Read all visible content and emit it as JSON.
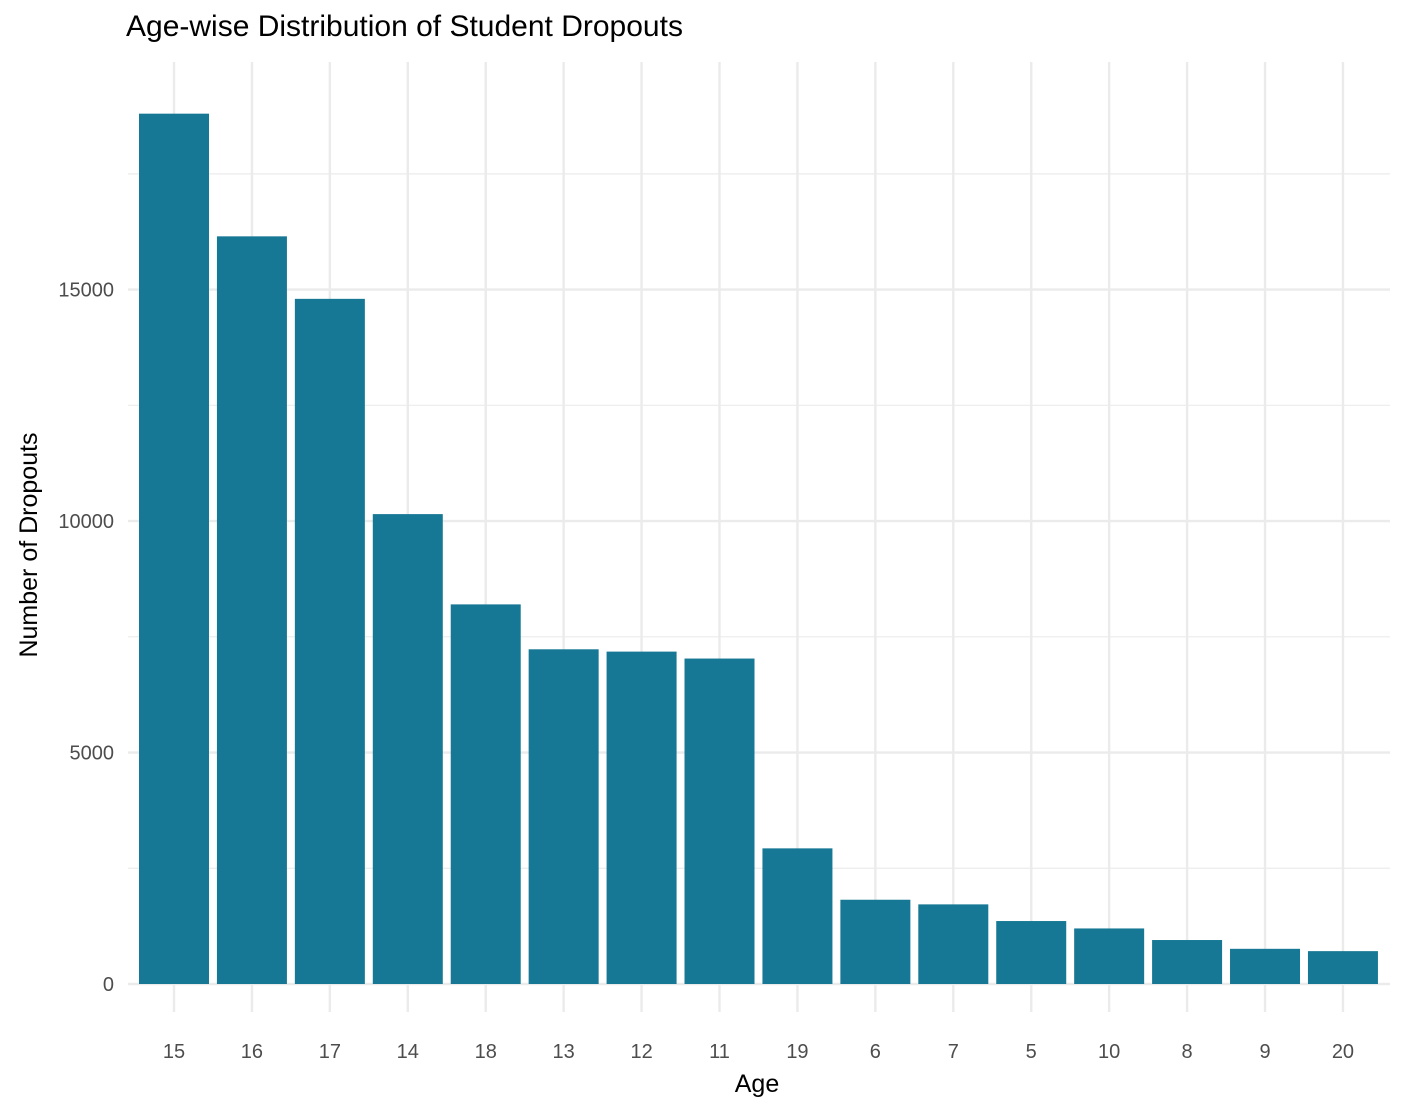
{
  "chart_data": {
    "type": "bar",
    "title": "Age-wise Distribution of Student Dropouts",
    "xlabel": "Age",
    "ylabel": "Number of Dropouts",
    "categories": [
      "15",
      "16",
      "17",
      "14",
      "18",
      "13",
      "12",
      "11",
      "19",
      "6",
      "7",
      "5",
      "10",
      "8",
      "9",
      "20"
    ],
    "values": [
      18800,
      16150,
      14800,
      10150,
      8200,
      7230,
      7180,
      7030,
      2930,
      1820,
      1720,
      1360,
      1200,
      950,
      760,
      710
    ],
    "ylim": [
      0,
      19700
    ],
    "yticks": [
      0,
      5000,
      10000,
      15000
    ],
    "ytick_labels": [
      "0",
      "5000",
      "10000",
      "15000"
    ],
    "grid": true,
    "bar_color": "#177895",
    "grid_color": "#ebebeb"
  }
}
